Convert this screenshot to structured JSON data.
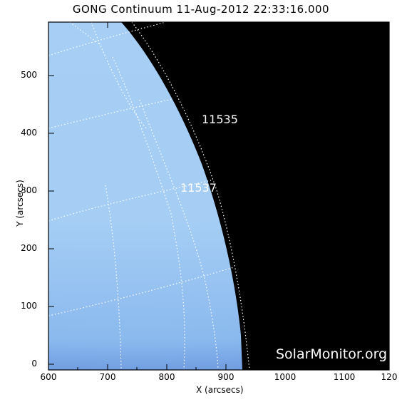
{
  "title": "GONG Continuum 11-Aug-2012 22:33:16.000",
  "x_axis_label": "X (arcsecs)",
  "y_axis_label": "Y (arcsecs)",
  "x_ticks": [
    "600",
    "700",
    "800",
    "900",
    "1000",
    "1100",
    "120"
  ],
  "y_ticks": [
    "0",
    "100",
    "200",
    "300",
    "400",
    "500"
  ],
  "regions": [
    {
      "label": "11535",
      "x_arcsec": 870,
      "y_arcsec": 425
    },
    {
      "label": "11537",
      "x_arcsec": 855,
      "y_arcsec": 305
    }
  ],
  "watermark": "SolarMonitor.org",
  "colors": {
    "disk": "#a8d2f7",
    "limb": "#1d2a8e",
    "sky": "#000000",
    "grid": "#ffffff",
    "text": "#000000"
  }
}
